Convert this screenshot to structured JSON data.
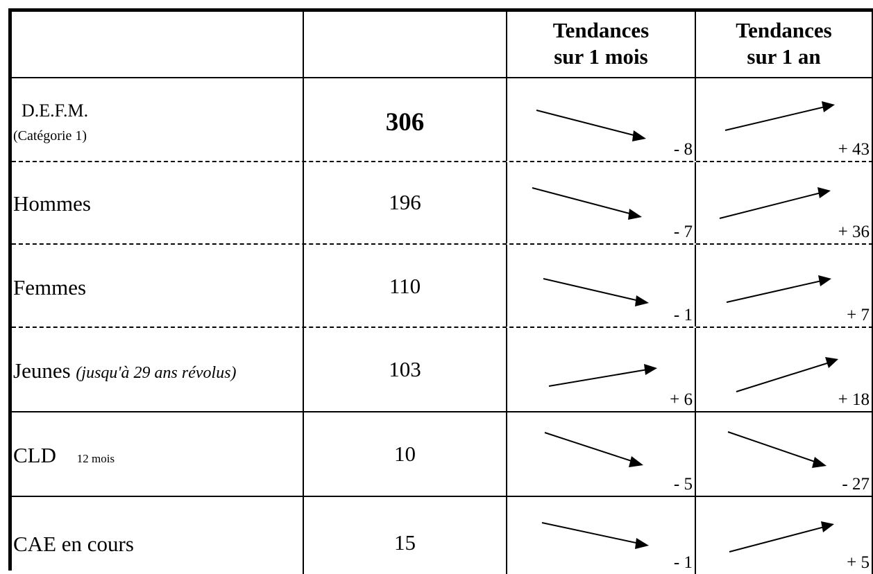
{
  "header": {
    "month_line1": "Tendances",
    "month_line2": "sur 1 mois",
    "year_line1": "Tendances",
    "year_line2": "sur 1 an"
  },
  "rows": [
    {
      "label": "D.E.F.M.",
      "sublabel": "(Catégorie 1)",
      "value": "306",
      "month_delta": "- 8",
      "year_delta": "+ 43",
      "month_trend": "down",
      "year_trend": "up"
    },
    {
      "label": "Hommes",
      "value": "196",
      "month_delta": "- 7",
      "year_delta": "+ 36",
      "month_trend": "down",
      "year_trend": "up"
    },
    {
      "label": "Femmes",
      "value": "110",
      "month_delta": "- 1",
      "year_delta": "+ 7",
      "month_trend": "down",
      "year_trend": "up"
    },
    {
      "label": "Jeunes",
      "label_note": "(jusqu'à 29 ans révolus)",
      "value": "103",
      "month_delta": "+ 6",
      "year_delta": "+ 18",
      "month_trend": "up",
      "year_trend": "up"
    },
    {
      "label": "CLD",
      "label_note": "12 mois",
      "value": "10",
      "month_delta": "- 5",
      "year_delta": "- 27",
      "month_trend": "down",
      "year_trend": "down"
    },
    {
      "label": "CAE en cours",
      "value": "15",
      "month_delta": "- 1",
      "year_delta": "+ 5",
      "month_trend": "down",
      "year_trend": "up"
    }
  ]
}
